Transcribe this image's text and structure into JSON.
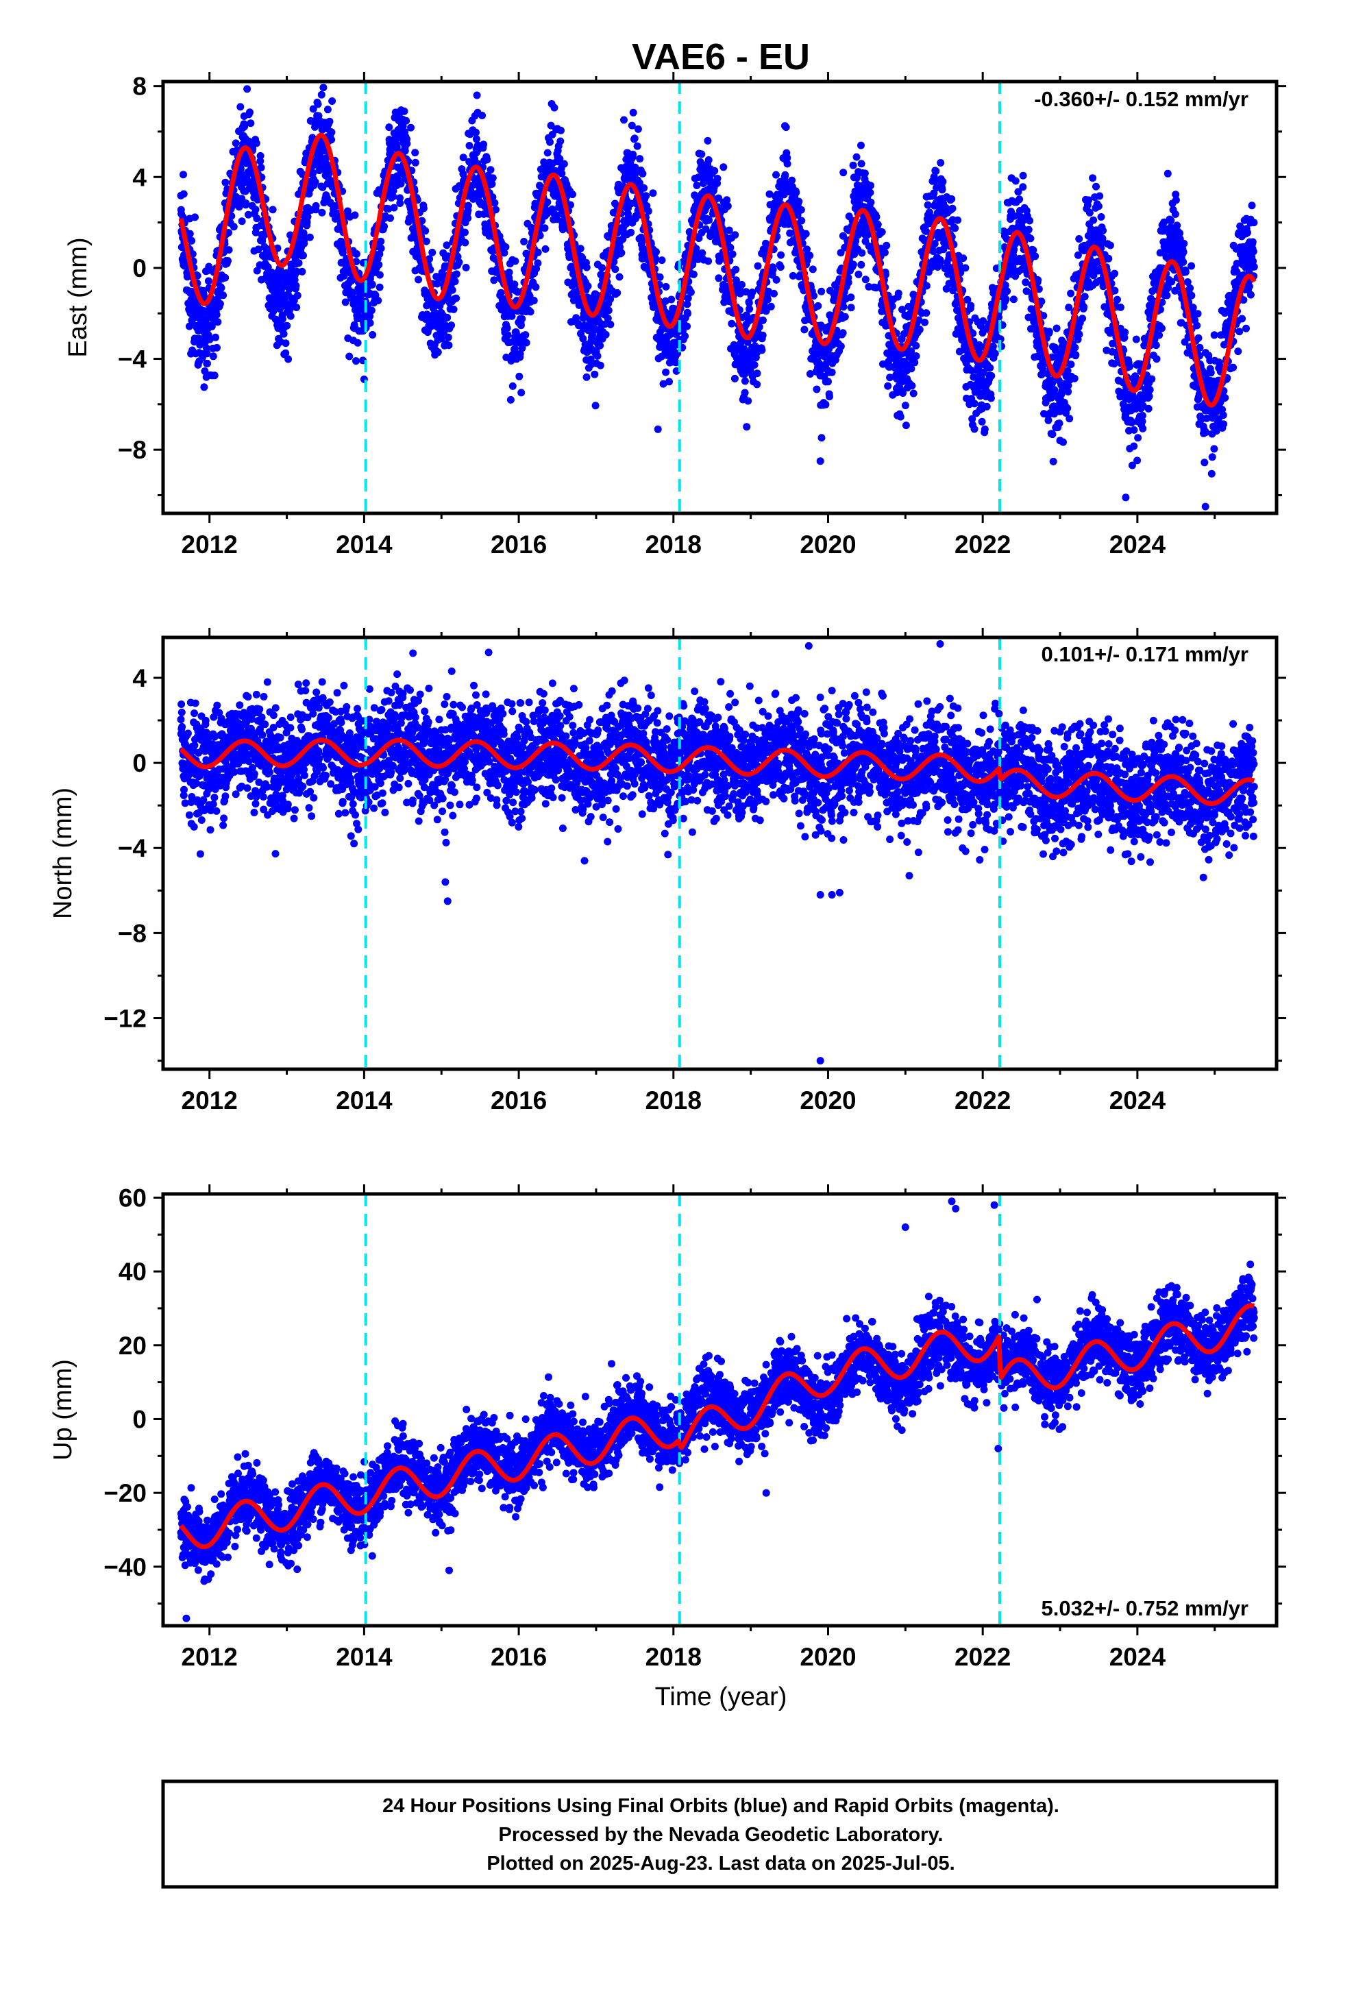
{
  "title": "VAE6 - EU",
  "xlabel": "Time (year)",
  "footer": {
    "lines": [
      "24 Hour Positions Using Final Orbits (blue) and Rapid Orbits (magenta).",
      "Processed by the Nevada Geodetic Laboratory.",
      "Plotted on 2025-Aug-23. Last data on 2025-Jul-05."
    ]
  },
  "colors": {
    "final_orbits": "#0000ff",
    "model": "#ff0000",
    "steps": "#00e5ee",
    "frame": "#000000"
  },
  "chart_data": [
    {
      "type": "scatter",
      "panel": "east",
      "title": "",
      "xlabel": "",
      "ylabel": "East (mm)",
      "xlim": [
        2011.4,
        2025.8
      ],
      "ylim": [
        -10.8,
        8.2
      ],
      "xticks": [
        2012,
        2014,
        2016,
        2018,
        2020,
        2022,
        2024
      ],
      "yticks": [
        8,
        4,
        0,
        -4,
        -8
      ],
      "grid": false,
      "rate_text": "-0.360+/- 0.152 mm/yr",
      "rate_position": "top-right",
      "step_epochs": [
        2014.02,
        2018.08,
        2022.22
      ],
      "series": [
        {
          "name": "Final Orbits (blue)",
          "color": "#0000ff",
          "x_start": 2011.63,
          "x_end": 2025.51,
          "n_points": 4800,
          "trend_y": [
            [
              2011.63,
              0.5
            ],
            [
              2013.0,
              2.0
            ],
            [
              2015.0,
              1.3
            ],
            [
              2017.0,
              0.6
            ],
            [
              2019.0,
              -0.3
            ],
            [
              2021.0,
              -0.9
            ],
            [
              2022.21,
              -1.6
            ],
            [
              2022.23,
              -1.7
            ],
            [
              2025.51,
              -3.1
            ]
          ],
          "seasonal_amplitude": 3.5,
          "noise_sd": 1.15,
          "outliers": [
            [
              2014.0,
              -4.9
            ],
            [
              2019.9,
              -8.5
            ],
            [
              2024.88,
              -10.5
            ],
            [
              2023.85,
              -10.1
            ],
            [
              2017.8,
              -7.1
            ]
          ]
        }
      ],
      "model": {
        "name": "Model fit",
        "color": "#ff0000",
        "trend_y": [
          [
            2011.63,
            0.9
          ],
          [
            2013.0,
            3.2
          ],
          [
            2015.0,
            1.6
          ],
          [
            2017.0,
            0.9
          ],
          [
            2019.0,
            -0.1
          ],
          [
            2021.0,
            -0.6
          ],
          [
            2022.21,
            -1.2
          ],
          [
            2022.23,
            -1.3
          ],
          [
            2025.51,
            -3.4
          ]
        ],
        "seasonal_amplitude": 3.0
      }
    },
    {
      "type": "scatter",
      "panel": "north",
      "title": "",
      "xlabel": "",
      "ylabel": "North (mm)",
      "xlim": [
        2011.4,
        2025.8
      ],
      "ylim": [
        -14.4,
        5.9
      ],
      "xticks": [
        2012,
        2014,
        2016,
        2018,
        2020,
        2022,
        2024
      ],
      "yticks": [
        4,
        0,
        -4,
        -8,
        -12
      ],
      "grid": false,
      "rate_text": "0.101+/- 0.171 mm/yr",
      "rate_position": "top-right",
      "step_epochs": [
        2014.02,
        2018.08,
        2022.22
      ],
      "series": [
        {
          "name": "Final Orbits (blue)",
          "color": "#0000ff",
          "x_start": 2011.63,
          "x_end": 2025.51,
          "n_points": 4800,
          "trend_y": [
            [
              2011.63,
              0.4
            ],
            [
              2014.0,
              0.5
            ],
            [
              2017.0,
              0.3
            ],
            [
              2019.5,
              0.0
            ],
            [
              2022.21,
              -0.5
            ],
            [
              2022.23,
              -0.9
            ],
            [
              2025.51,
              -1.3
            ]
          ],
          "seasonal_amplitude": 0.6,
          "noise_sd": 1.25,
          "outliers": [
            [
              2015.05,
              -5.6
            ],
            [
              2015.08,
              -6.5
            ],
            [
              2019.75,
              5.5
            ],
            [
              2019.9,
              -14.0
            ],
            [
              2019.9,
              -6.2
            ],
            [
              2020.05,
              -6.2
            ],
            [
              2020.15,
              -6.1
            ],
            [
              2016.85,
              -4.6
            ],
            [
              2021.05,
              -5.3
            ]
          ]
        }
      ],
      "model": {
        "name": "Model fit",
        "color": "#ff0000",
        "trend_y": [
          [
            2011.63,
            0.4
          ],
          [
            2014.0,
            0.5
          ],
          [
            2017.0,
            0.3
          ],
          [
            2019.5,
            0.0
          ],
          [
            2022.21,
            -0.3
          ],
          [
            2022.23,
            -0.9
          ],
          [
            2025.51,
            -1.4
          ]
        ],
        "seasonal_amplitude": 0.6
      }
    },
    {
      "type": "scatter",
      "panel": "up",
      "title": "",
      "xlabel": "Time (year)",
      "ylabel": "Up (mm)",
      "xlim": [
        2011.4,
        2025.8
      ],
      "ylim": [
        -56,
        61
      ],
      "xticks": [
        2012,
        2014,
        2016,
        2018,
        2020,
        2022,
        2024
      ],
      "yticks": [
        60,
        40,
        20,
        0,
        -20,
        -40
      ],
      "grid": false,
      "rate_text": "5.032+/- 0.752 mm/yr",
      "rate_position": "bottom-right",
      "step_epochs": [
        2014.02,
        2018.08,
        2022.22
      ],
      "series": [
        {
          "name": "Final Orbits (blue)",
          "color": "#0000ff",
          "x_start": 2011.63,
          "x_end": 2025.51,
          "n_points": 4800,
          "trend_y": [
            [
              2011.63,
              -31
            ],
            [
              2018.06,
              0
            ],
            [
              2018.1,
              -1
            ],
            [
              2020.0,
              10
            ],
            [
              2022.21,
              20
            ],
            [
              2022.23,
              11
            ],
            [
              2025.51,
              26
            ]
          ],
          "seasonal_amplitude": 5,
          "noise_sd": 4.5,
          "outliers": [
            [
              2011.7,
              -54
            ],
            [
              2021.6,
              59
            ],
            [
              2021.65,
              57
            ],
            [
              2022.15,
              58
            ],
            [
              2021.0,
              52
            ],
            [
              2022.2,
              -8
            ],
            [
              2019.2,
              -20
            ],
            [
              2015.1,
              -41
            ],
            [
              2017.2,
              15
            ]
          ]
        }
      ],
      "model": {
        "name": "Model fit",
        "color": "#ff0000",
        "trend_y": [
          [
            2011.63,
            -31
          ],
          [
            2018.06,
            -2
          ],
          [
            2018.1,
            -5
          ],
          [
            2020.0,
            12
          ],
          [
            2022.21,
            22
          ],
          [
            2022.23,
            10
          ],
          [
            2025.51,
            26
          ]
        ],
        "seasonal_amplitude": 5
      }
    }
  ]
}
